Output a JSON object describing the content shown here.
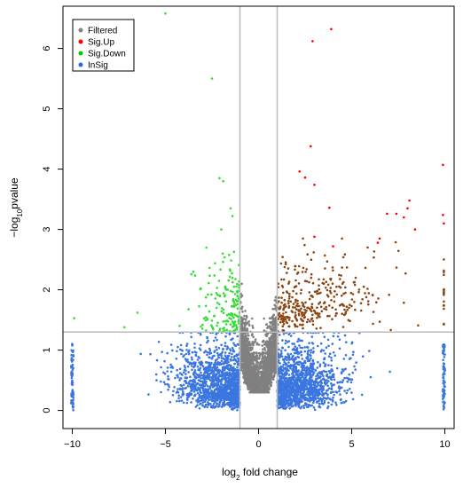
{
  "chart_data": {
    "type": "scatter",
    "title": "",
    "xlabel_prefix": "log",
    "xlabel_sub": "2",
    "xlabel_suffix": " fold change",
    "ylabel_prefix": "−log",
    "ylabel_sub": "10",
    "ylabel_suffix": "pvalue",
    "xlim": [
      -10.5,
      10.5
    ],
    "ylim": [
      -0.3,
      6.7
    ],
    "xticks": [
      -10,
      -5,
      0,
      5,
      10
    ],
    "xtick_labels": [
      "−10",
      "−5",
      "0",
      "5",
      "10"
    ],
    "yticks": [
      0,
      1,
      2,
      3,
      4,
      5,
      6
    ],
    "ytick_labels": [
      "0",
      "1",
      "2",
      "3",
      "4",
      "5",
      "6"
    ],
    "grid": false,
    "threshold_lines": {
      "fc_x": [
        -1,
        1
      ],
      "pvalue_y": 1.3
    },
    "legend_position": "top-left",
    "legend": [
      {
        "label": "Filtered",
        "color": "#808080"
      },
      {
        "label": "Sig.Up",
        "color": "#ff0000"
      },
      {
        "label": "Sig.Down",
        "color": "#00cc00"
      },
      {
        "label": "InSig",
        "color": "#1f6fe0"
      }
    ],
    "colors": {
      "filtered": "#808080",
      "sig_up_high": "#ff0000",
      "sig_up_low": "#8b4513",
      "sig_down": "#33dd33",
      "insig": "#3b76e0",
      "threshold_line": "#bbbbbb"
    },
    "highlight_points": [
      {
        "series": "Sig.Down",
        "x": -5.0,
        "y": 6.58
      },
      {
        "series": "Sig.Down",
        "x": -2.5,
        "y": 5.5
      },
      {
        "series": "Sig.Down",
        "x": -2.1,
        "y": 3.85
      },
      {
        "series": "Sig.Down",
        "x": -1.9,
        "y": 3.8
      },
      {
        "series": "Sig.Down",
        "x": -1.5,
        "y": 3.35
      },
      {
        "series": "Sig.Down",
        "x": -1.4,
        "y": 3.22
      },
      {
        "series": "Sig.Down",
        "x": -2.0,
        "y": 3.0
      },
      {
        "series": "Sig.Down",
        "x": -2.8,
        "y": 2.7
      },
      {
        "series": "Sig.Down",
        "x": -3.5,
        "y": 2.3
      },
      {
        "series": "Sig.Down",
        "x": -6.5,
        "y": 1.62
      },
      {
        "series": "Sig.Down",
        "x": -7.2,
        "y": 1.38
      },
      {
        "series": "Sig.Down",
        "x": -9.9,
        "y": 1.53
      },
      {
        "series": "Sig.Up",
        "x": 3.9,
        "y": 6.32
      },
      {
        "series": "Sig.Up",
        "x": 2.9,
        "y": 6.12
      },
      {
        "series": "Sig.Up",
        "x": 2.8,
        "y": 4.38
      },
      {
        "series": "Sig.Up",
        "x": 2.2,
        "y": 3.96
      },
      {
        "series": "Sig.Up",
        "x": 2.5,
        "y": 3.86
      },
      {
        "series": "Sig.Up",
        "x": 3.0,
        "y": 3.74
      },
      {
        "series": "Sig.Up",
        "x": 3.8,
        "y": 3.36
      },
      {
        "series": "Sig.Up",
        "x": 9.9,
        "y": 4.07
      },
      {
        "series": "Sig.Up",
        "x": 8.1,
        "y": 3.48
      },
      {
        "series": "Sig.Up",
        "x": 8.0,
        "y": 3.35
      },
      {
        "series": "Sig.Up",
        "x": 7.4,
        "y": 3.26
      },
      {
        "series": "Sig.Up",
        "x": 7.8,
        "y": 3.2
      },
      {
        "series": "Sig.Up",
        "x": 6.9,
        "y": 3.26
      },
      {
        "series": "Sig.Up",
        "x": 9.9,
        "y": 3.24
      },
      {
        "series": "Sig.Up",
        "x": 9.95,
        "y": 3.1
      },
      {
        "series": "Sig.Up",
        "x": 8.4,
        "y": 3.0
      },
      {
        "series": "Sig.Up",
        "x": 3.0,
        "y": 2.88
      },
      {
        "series": "Sig.Up",
        "x": 6.5,
        "y": 2.85
      },
      {
        "series": "Sig.Up",
        "x": 6.4,
        "y": 2.78
      },
      {
        "series": "Sig.Up",
        "x": 4.0,
        "y": 2.72
      }
    ]
  }
}
